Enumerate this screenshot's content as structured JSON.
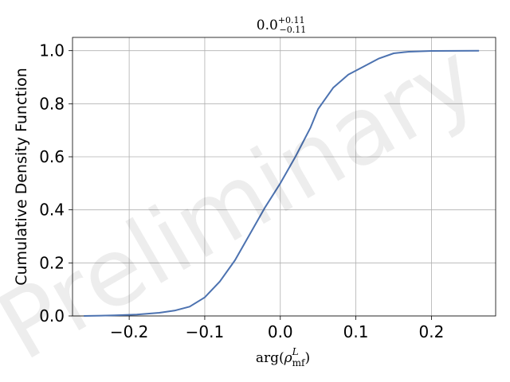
{
  "chart_data": {
    "type": "line",
    "title": {
      "base": "0.0",
      "sup": "+0.11",
      "sub": "−0.11"
    },
    "xlabel": {
      "prefix": "arg(",
      "symbol": "ρ",
      "sup": "L",
      "sub": "mf",
      "suffix": ")"
    },
    "ylabel": "Cumulative Density Function",
    "watermark": "Preliminary",
    "xlim": [
      -0.275,
      0.285
    ],
    "ylim": [
      0.0,
      1.05
    ],
    "xticks": [
      {
        "value": -0.2,
        "label": "−0.2"
      },
      {
        "value": -0.1,
        "label": "−0.1"
      },
      {
        "value": 0.0,
        "label": "0.0"
      },
      {
        "value": 0.1,
        "label": "0.1"
      },
      {
        "value": 0.2,
        "label": "0.2"
      }
    ],
    "yticks": [
      {
        "value": 0.0,
        "label": "0.0"
      },
      {
        "value": 0.2,
        "label": "0.2"
      },
      {
        "value": 0.4,
        "label": "0.4"
      },
      {
        "value": 0.6,
        "label": "0.6"
      },
      {
        "value": 0.8,
        "label": "0.8"
      },
      {
        "value": 1.0,
        "label": "1.0"
      }
    ],
    "grid": true,
    "series": [
      {
        "color": "#4c72b0",
        "x": [
          -0.26,
          -0.22,
          -0.19,
          -0.16,
          -0.14,
          -0.12,
          -0.1,
          -0.08,
          -0.06,
          -0.04,
          -0.02,
          0.0,
          0.02,
          0.04,
          0.05,
          0.07,
          0.09,
          0.11,
          0.13,
          0.15,
          0.17,
          0.2,
          0.263
        ],
        "y": [
          0.0,
          0.002,
          0.005,
          0.012,
          0.02,
          0.035,
          0.07,
          0.13,
          0.21,
          0.31,
          0.41,
          0.5,
          0.6,
          0.71,
          0.78,
          0.86,
          0.91,
          0.94,
          0.97,
          0.99,
          0.996,
          0.999,
          1.0
        ]
      }
    ]
  }
}
